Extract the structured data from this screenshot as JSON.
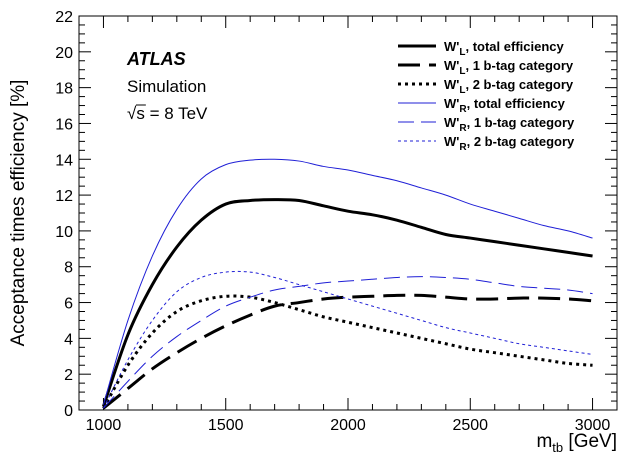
{
  "chart_data": {
    "type": "line",
    "x_label_main": "m",
    "x_label_sub": "tb",
    "x_label_unit": " [GeV]",
    "ylabel": "Acceptance times efficiency [%]",
    "xlim": [
      900,
      3100
    ],
    "ylim": [
      0,
      22
    ],
    "x_ticks": [
      1000,
      1500,
      2000,
      2500,
      3000
    ],
    "y_ticks": [
      0,
      2,
      4,
      6,
      8,
      10,
      12,
      14,
      16,
      18,
      20,
      22
    ],
    "grid": false,
    "legend_placement": "top-right",
    "annotations": {
      "experiment": "ATLAS",
      "status": "Simulation",
      "energy_sqrt": "√",
      "energy_rest": "s = 8 TeV"
    },
    "series": [
      {
        "id": "wl-total",
        "lbl_pre": "W'",
        "lbl_sub": "L",
        "lbl_post": ", total efficiency",
        "color": "#000000",
        "width": 3,
        "dash": "none",
        "x": [
          1000,
          1100,
          1200,
          1300,
          1400,
          1500,
          1600,
          1700,
          1800,
          1900,
          2000,
          2100,
          2200,
          2300,
          2400,
          2500,
          2600,
          2700,
          2800,
          2900,
          3000
        ],
        "y": [
          0.2,
          4.2,
          7.0,
          9.1,
          10.6,
          11.5,
          11.7,
          11.75,
          11.7,
          11.4,
          11.1,
          10.9,
          10.6,
          10.2,
          9.8,
          9.6,
          9.4,
          9.2,
          9.0,
          8.8,
          8.6
        ]
      },
      {
        "id": "wl-1b",
        "lbl_pre": "W'",
        "lbl_sub": "L",
        "lbl_post": ", 1 b-tag category",
        "color": "#000000",
        "width": 3,
        "dash": "22,9",
        "x": [
          1000,
          1100,
          1200,
          1300,
          1400,
          1500,
          1600,
          1700,
          1800,
          1900,
          2000,
          2100,
          2200,
          2300,
          2400,
          2500,
          2600,
          2700,
          2800,
          2900,
          3000
        ],
        "y": [
          0.1,
          1.2,
          2.3,
          3.2,
          4.0,
          4.7,
          5.3,
          5.8,
          6.0,
          6.2,
          6.3,
          6.35,
          6.4,
          6.4,
          6.3,
          6.2,
          6.2,
          6.25,
          6.25,
          6.2,
          6.1
        ]
      },
      {
        "id": "wl-2b",
        "lbl_pre": "W'",
        "lbl_sub": "L",
        "lbl_post": ", 2 b-tag category",
        "color": "#000000",
        "width": 3,
        "dash": "3,4",
        "x": [
          1000,
          1100,
          1200,
          1300,
          1400,
          1500,
          1600,
          1700,
          1800,
          1900,
          2000,
          2100,
          2200,
          2300,
          2400,
          2500,
          2600,
          2700,
          2800,
          2900,
          3000
        ],
        "y": [
          0.1,
          2.5,
          4.3,
          5.5,
          6.1,
          6.35,
          6.3,
          6.0,
          5.6,
          5.2,
          4.9,
          4.6,
          4.3,
          4.0,
          3.7,
          3.4,
          3.2,
          3.0,
          2.8,
          2.6,
          2.5
        ]
      },
      {
        "id": "wr-total",
        "lbl_pre": "W'",
        "lbl_sub": "R",
        "lbl_post": ", total efficiency",
        "color": "#1f1fd6",
        "width": 1,
        "dash": "none",
        "x": [
          1000,
          1100,
          1200,
          1300,
          1400,
          1500,
          1600,
          1700,
          1800,
          1900,
          2000,
          2100,
          2200,
          2300,
          2400,
          2500,
          2600,
          2700,
          2800,
          2900,
          3000
        ],
        "y": [
          0.3,
          5.0,
          8.6,
          11.2,
          12.9,
          13.7,
          13.95,
          14.0,
          13.9,
          13.6,
          13.4,
          13.1,
          12.8,
          12.4,
          12.0,
          11.5,
          11.1,
          10.7,
          10.3,
          10.0,
          9.6
        ]
      },
      {
        "id": "wr-1b",
        "lbl_pre": "W'",
        "lbl_sub": "R",
        "lbl_post": ", 1 b-tag category",
        "color": "#1f1fd6",
        "width": 1,
        "dash": "16,7",
        "x": [
          1000,
          1100,
          1200,
          1300,
          1400,
          1500,
          1600,
          1700,
          1800,
          1900,
          2000,
          2100,
          2200,
          2300,
          2400,
          2500,
          2600,
          2700,
          2800,
          2900,
          3000
        ],
        "y": [
          0.1,
          1.6,
          3.0,
          4.1,
          5.0,
          5.8,
          6.3,
          6.7,
          6.9,
          7.1,
          7.2,
          7.3,
          7.4,
          7.45,
          7.4,
          7.3,
          7.1,
          6.9,
          6.8,
          6.7,
          6.5
        ]
      },
      {
        "id": "wr-2b",
        "lbl_pre": "W'",
        "lbl_sub": "R",
        "lbl_post": ", 2 b-tag category",
        "color": "#1f1fd6",
        "width": 1,
        "dash": "3,3",
        "x": [
          1000,
          1100,
          1200,
          1300,
          1400,
          1500,
          1600,
          1700,
          1800,
          1900,
          2000,
          2100,
          2200,
          2300,
          2400,
          2500,
          2600,
          2700,
          2800,
          2900,
          3000
        ],
        "y": [
          0.1,
          2.8,
          5.0,
          6.6,
          7.4,
          7.7,
          7.7,
          7.4,
          7.0,
          6.6,
          6.2,
          5.8,
          5.4,
          5.0,
          4.6,
          4.3,
          4.0,
          3.7,
          3.5,
          3.3,
          3.1
        ]
      }
    ]
  }
}
